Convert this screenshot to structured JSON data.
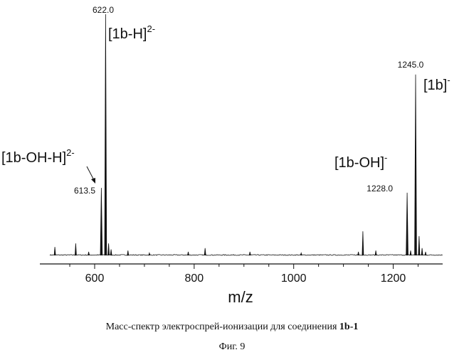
{
  "chart_data": {
    "type": "line",
    "xlabel": "m/z",
    "ylabel": "",
    "xlim": [
      510,
      1300
    ],
    "ylim": [
      0,
      100
    ],
    "x_ticks": [
      600,
      800,
      1000,
      1200
    ],
    "grid": false,
    "peaks": [
      {
        "mz": 520,
        "intensity": 3.5
      },
      {
        "mz": 562,
        "intensity": 5
      },
      {
        "mz": 588,
        "intensity": 1.5
      },
      {
        "mz": 613.5,
        "intensity": 28
      },
      {
        "mz": 622.0,
        "intensity": 100
      },
      {
        "mz": 628,
        "intensity": 5
      },
      {
        "mz": 633,
        "intensity": 2.5
      },
      {
        "mz": 667,
        "intensity": 2
      },
      {
        "mz": 710,
        "intensity": 1
      },
      {
        "mz": 788,
        "intensity": 1.5
      },
      {
        "mz": 822,
        "intensity": 3
      },
      {
        "mz": 912,
        "intensity": 1.5
      },
      {
        "mz": 1015,
        "intensity": 1
      },
      {
        "mz": 1130,
        "intensity": 1.5
      },
      {
        "mz": 1139,
        "intensity": 10
      },
      {
        "mz": 1165,
        "intensity": 2
      },
      {
        "mz": 1228.0,
        "intensity": 26
      },
      {
        "mz": 1235,
        "intensity": 2
      },
      {
        "mz": 1245.0,
        "intensity": 75
      },
      {
        "mz": 1252,
        "intensity": 8
      },
      {
        "mz": 1258,
        "intensity": 3
      },
      {
        "mz": 1265,
        "intensity": 1.5
      }
    ],
    "peak_labels": [
      {
        "mz": 622.0,
        "text": "622.0"
      },
      {
        "mz": 613.5,
        "text": "613.5"
      },
      {
        "mz": 1245.0,
        "text": "1245.0"
      },
      {
        "mz": 1228.0,
        "text": "1228.0"
      }
    ],
    "ion_labels": [
      {
        "base": "[1b-H]",
        "sup": "2-"
      },
      {
        "base": "[1b-OH-H]",
        "sup": "2-"
      },
      {
        "base": "[1b]",
        "sup": "-"
      },
      {
        "base": "[1b-OH]",
        "sup": "-"
      }
    ]
  },
  "caption": {
    "text": "Масс-спектр электроспрей-ионизации для соединения ",
    "compound": "1b-1"
  },
  "figure_label": "Фиг. 9"
}
